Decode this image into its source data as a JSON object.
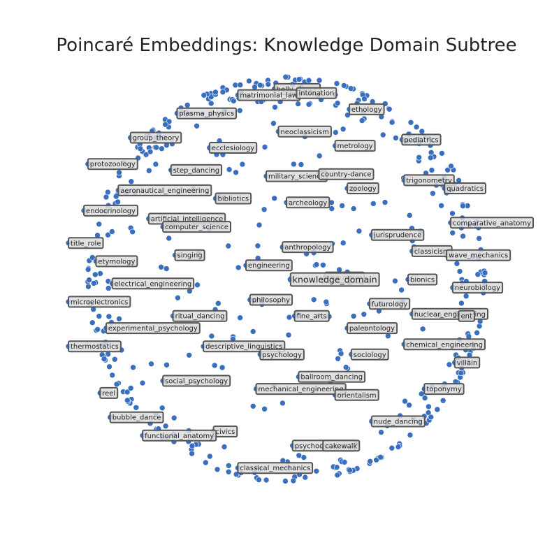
{
  "chart_data": {
    "type": "scatter",
    "title": "Poincaré Embeddings: Knowledge Domain Subtree",
    "xlim": [
      -1,
      1
    ],
    "ylim": [
      -1,
      1
    ],
    "grid": false,
    "colors": {
      "points": "#3a6fc0",
      "label_bg": "#dcdcdc",
      "label_border": "#555555"
    },
    "root": {
      "label": "knowledge_domain",
      "x": 0.02,
      "y": 0.0
    },
    "labeled": [
      {
        "label": "belly_dance",
        "x": -0.06,
        "y": 0.94
      },
      {
        "label": "matrimonial_law",
        "x": -0.24,
        "y": 0.91
      },
      {
        "label": "intonation",
        "x": 0.05,
        "y": 0.92
      },
      {
        "label": "ethology",
        "x": 0.31,
        "y": 0.84
      },
      {
        "label": "plasma_physics",
        "x": -0.54,
        "y": 0.82
      },
      {
        "label": "group_theory",
        "x": -0.77,
        "y": 0.7
      },
      {
        "label": "neoclassicism",
        "x": -0.04,
        "y": 0.73
      },
      {
        "label": "pediatrics",
        "x": 0.57,
        "y": 0.69
      },
      {
        "label": "ecclesiology",
        "x": -0.38,
        "y": 0.65
      },
      {
        "label": "metrology",
        "x": 0.24,
        "y": 0.66
      },
      {
        "label": "protozoology",
        "x": -0.98,
        "y": 0.57
      },
      {
        "label": "step_dancing",
        "x": -0.57,
        "y": 0.54
      },
      {
        "label": "military_science",
        "x": -0.1,
        "y": 0.51
      },
      {
        "label": "country-dance",
        "x": 0.16,
        "y": 0.52
      },
      {
        "label": "trigonometry",
        "x": 0.58,
        "y": 0.49
      },
      {
        "label": "aeronautical_engineering",
        "x": -0.83,
        "y": 0.44
      },
      {
        "label": "zoology",
        "x": 0.3,
        "y": 0.45
      },
      {
        "label": "quadratics",
        "x": 0.78,
        "y": 0.45
      },
      {
        "label": "bibliotics",
        "x": -0.35,
        "y": 0.4
      },
      {
        "label": "archeology",
        "x": 0.0,
        "y": 0.38
      },
      {
        "label": "endocrinology",
        "x": -1.0,
        "y": 0.34
      },
      {
        "label": "artificial_intelligence",
        "x": -0.68,
        "y": 0.3
      },
      {
        "label": "computer_science",
        "x": -0.61,
        "y": 0.26
      },
      {
        "label": "comparative_anatomy",
        "x": 0.81,
        "y": 0.28
      },
      {
        "label": "jurisprudence",
        "x": 0.42,
        "y": 0.22
      },
      {
        "label": "title_role",
        "x": -1.13,
        "y": 0.18
      },
      {
        "label": "anthropology",
        "x": -0.02,
        "y": 0.16
      },
      {
        "label": "classicism",
        "x": 0.62,
        "y": 0.14
      },
      {
        "label": "singing",
        "x": -0.55,
        "y": 0.12
      },
      {
        "label": "wave_mechanics",
        "x": 0.79,
        "y": 0.12
      },
      {
        "label": "etymology",
        "x": -0.94,
        "y": 0.09
      },
      {
        "label": "engineering",
        "x": -0.2,
        "y": 0.07
      },
      {
        "label": "linguistics",
        "x": 0.19,
        "y": 0.01
      },
      {
        "label": "bionics",
        "x": 0.6,
        "y": 0.0
      },
      {
        "label": "electrical_engineering",
        "x": -0.86,
        "y": -0.02
      },
      {
        "label": "neurobiology",
        "x": 0.82,
        "y": -0.04
      },
      {
        "label": "microelectronics",
        "x": -1.14,
        "y": -0.11
      },
      {
        "label": "philosophy",
        "x": -0.18,
        "y": -0.1
      },
      {
        "label": "futurology",
        "x": 0.41,
        "y": -0.12
      },
      {
        "label": "nuclear_engineering",
        "x": 0.62,
        "y": -0.17
      },
      {
        "label": "ent",
        "x": 0.85,
        "y": -0.18
      },
      {
        "label": "ritual_dancing",
        "x": -0.56,
        "y": -0.18
      },
      {
        "label": "fine_arts",
        "x": 0.04,
        "y": -0.18
      },
      {
        "label": "experimental_psychology",
        "x": -0.89,
        "y": -0.24
      },
      {
        "label": "paleontology",
        "x": 0.3,
        "y": -0.24
      },
      {
        "label": "chemical_engineering",
        "x": 0.58,
        "y": -0.32
      },
      {
        "label": "thermostatics",
        "x": -1.1,
        "y": -0.33
      },
      {
        "label": "descriptive_linguistics",
        "x": -0.41,
        "y": -0.33
      },
      {
        "label": "psychology",
        "x": -0.13,
        "y": -0.37
      },
      {
        "label": "sociology",
        "x": 0.32,
        "y": -0.37
      },
      {
        "label": "villain",
        "x": 0.83,
        "y": -0.41
      },
      {
        "label": "ballroom_dancing",
        "x": 0.06,
        "y": -0.48
      },
      {
        "label": "social_psychology",
        "x": -0.61,
        "y": -0.5
      },
      {
        "label": "mechanical_engineering",
        "x": -0.15,
        "y": -0.54
      },
      {
        "label": "reel",
        "x": -0.92,
        "y": -0.56
      },
      {
        "label": "orientalism",
        "x": 0.24,
        "y": -0.57
      },
      {
        "label": "toponymy",
        "x": 0.68,
        "y": -0.54
      },
      {
        "label": "bubble_dance",
        "x": -0.87,
        "y": -0.68
      },
      {
        "label": "nude_dancing",
        "x": 0.42,
        "y": -0.7
      },
      {
        "label": "civics",
        "x": -0.36,
        "y": -0.75
      },
      {
        "label": "functional_anatomy",
        "x": -0.71,
        "y": -0.77
      },
      {
        "label": "psychodynamics",
        "x": 0.03,
        "y": -0.82
      },
      {
        "label": "cakewalk",
        "x": 0.18,
        "y": -0.82
      },
      {
        "label": "classical_mechanics",
        "x": -0.24,
        "y": -0.93
      }
    ]
  }
}
